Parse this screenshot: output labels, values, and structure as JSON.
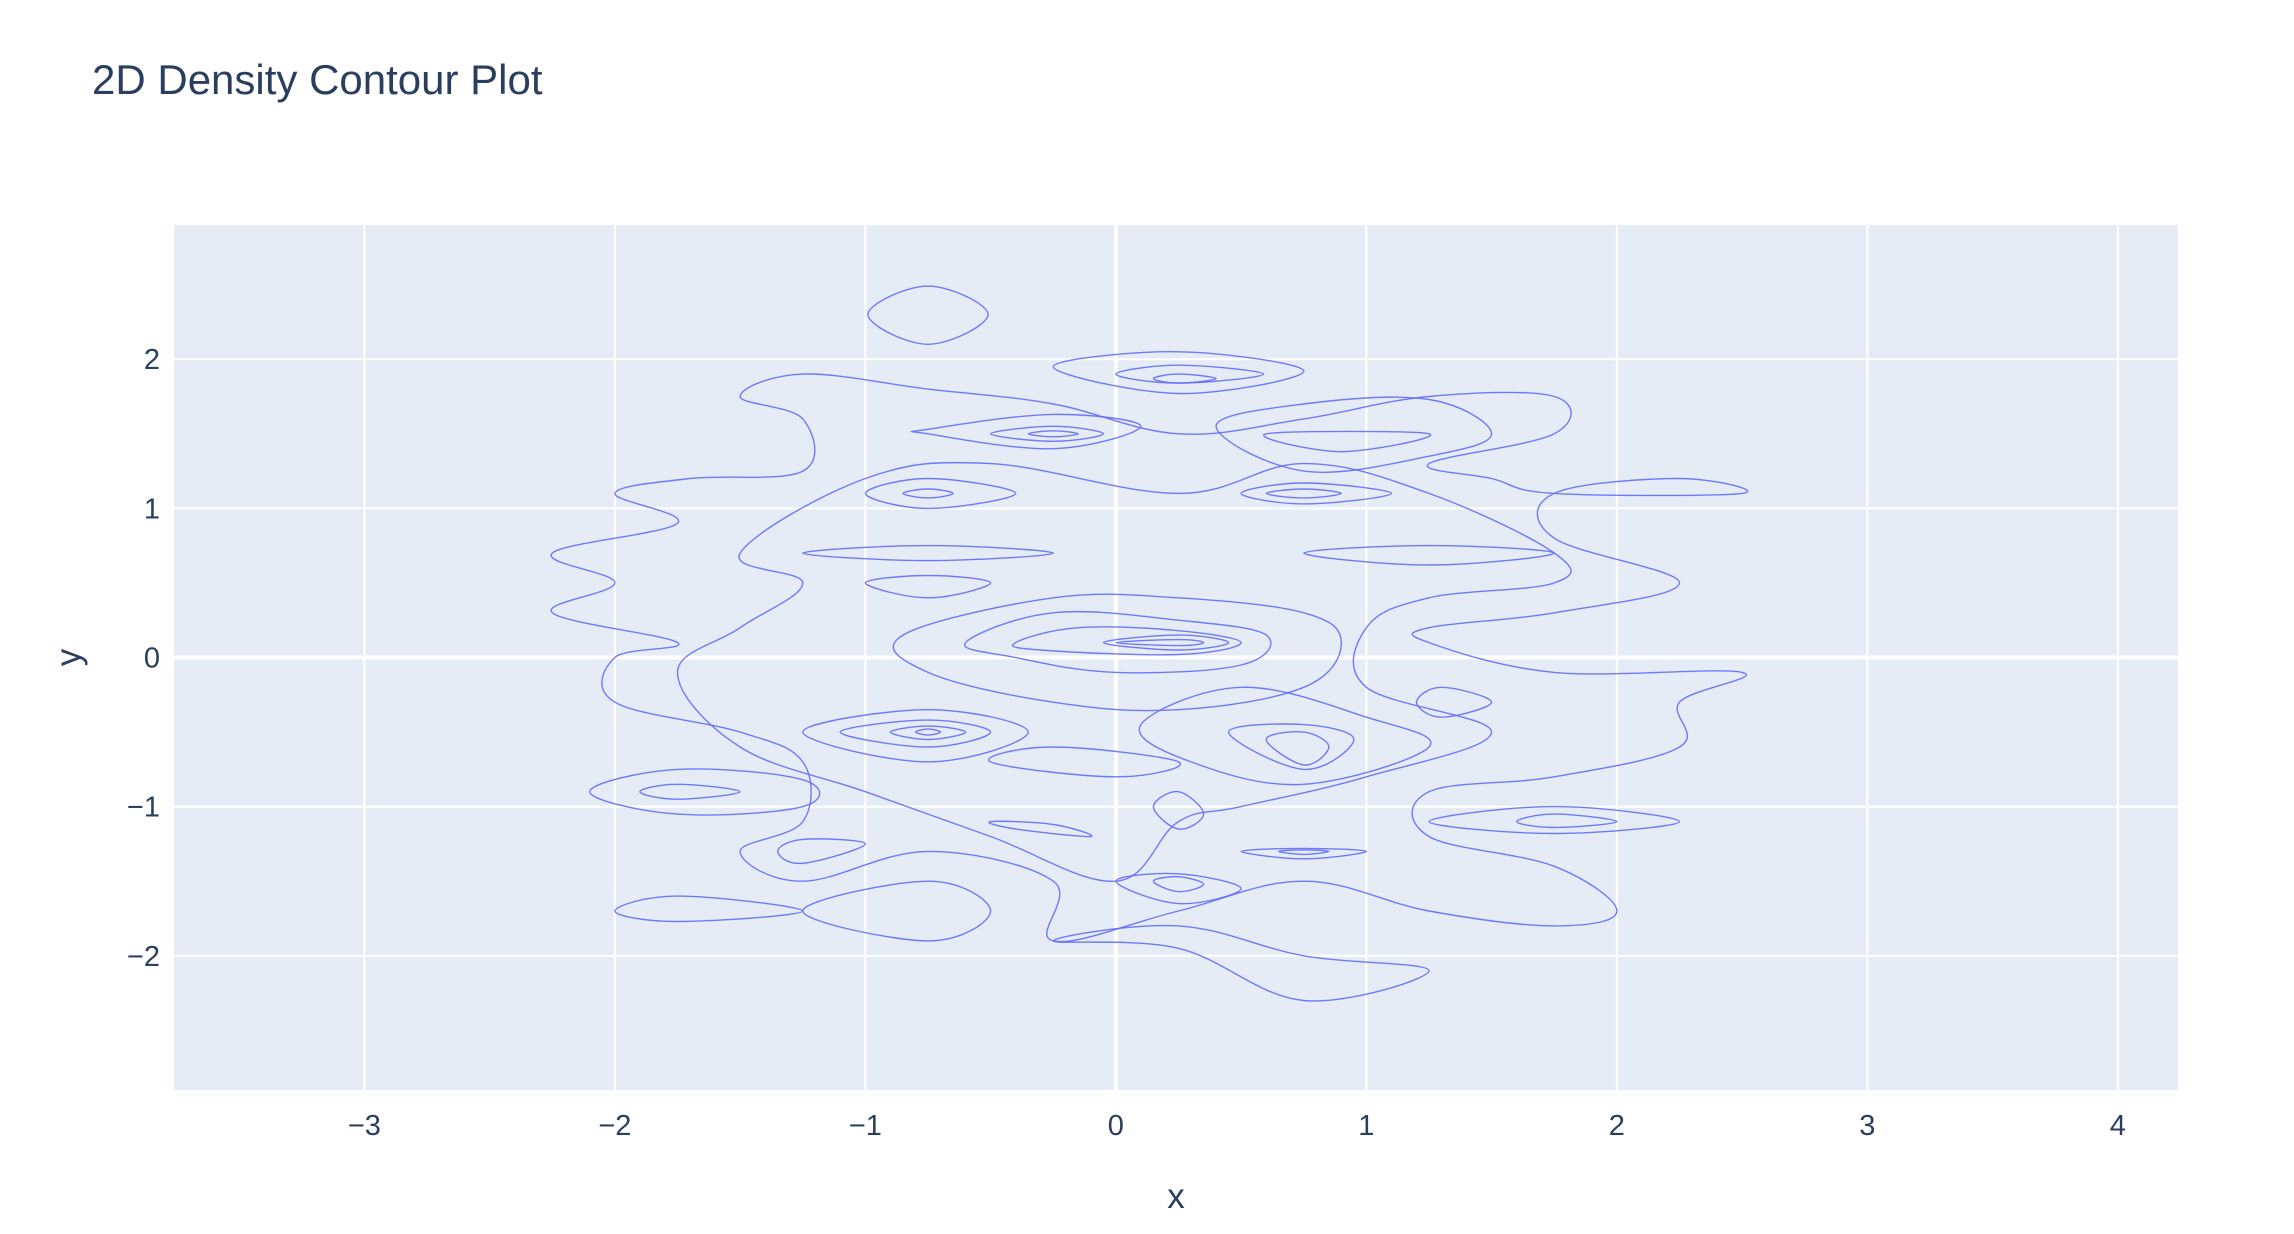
{
  "title": "2D Density Contour Plot",
  "chart_data": {
    "type": "contour",
    "title": "2D Density Contour Plot",
    "xlabel": "x",
    "ylabel": "y",
    "xlim": [
      -3.76,
      4.24
    ],
    "ylim": [
      -2.9,
      2.9
    ],
    "x_ticks": [
      -3,
      -2,
      -1,
      0,
      1,
      2,
      3,
      4
    ],
    "x_tick_labels": [
      "−3",
      "−2",
      "−1",
      "0",
      "1",
      "2",
      "3",
      "4"
    ],
    "y_ticks": [
      -2,
      -1,
      0,
      1,
      2
    ],
    "y_tick_labels": [
      "−2",
      "−1",
      "0",
      "1",
      "2"
    ],
    "grid": true,
    "legend": "none",
    "colors": {
      "plot_bg": "#e5ecf6",
      "grid": "#ffffff",
      "line": "#636efa",
      "text": "#2a3f5f"
    },
    "contours": [
      [
        [
          -0.99,
          2.3
        ],
        [
          -0.75,
          2.49
        ],
        [
          -0.51,
          2.3
        ],
        [
          -0.75,
          2.1
        ],
        [
          -0.99,
          2.3
        ]
      ],
      [
        [
          -0.25,
          1.95
        ],
        [
          0.25,
          2.05
        ],
        [
          0.75,
          1.92
        ],
        [
          0.25,
          1.77
        ],
        [
          -0.25,
          1.95
        ]
      ],
      [
        [
          0.0,
          1.9
        ],
        [
          0.25,
          1.96
        ],
        [
          0.59,
          1.9
        ],
        [
          0.25,
          1.84
        ],
        [
          0.0,
          1.9
        ]
      ],
      [
        [
          0.15,
          1.87
        ],
        [
          0.25,
          1.9
        ],
        [
          0.4,
          1.87
        ],
        [
          0.25,
          1.84
        ],
        [
          0.15,
          1.87
        ]
      ],
      [
        [
          -0.75,
          1.53
        ],
        [
          -0.25,
          1.63
        ],
        [
          0.1,
          1.55
        ],
        [
          -0.25,
          1.4
        ],
        [
          -0.75,
          1.5
        ]
      ],
      [
        [
          -0.5,
          1.5
        ],
        [
          -0.25,
          1.55
        ],
        [
          -0.05,
          1.5
        ],
        [
          -0.25,
          1.45
        ],
        [
          -0.5,
          1.5
        ]
      ],
      [
        [
          -0.35,
          1.5
        ],
        [
          -0.25,
          1.52
        ],
        [
          -0.15,
          1.5
        ],
        [
          -0.25,
          1.48
        ],
        [
          -0.35,
          1.5
        ]
      ],
      [
        [
          0.4,
          1.55
        ],
        [
          0.75,
          1.7
        ],
        [
          1.25,
          1.73
        ],
        [
          1.5,
          1.5
        ],
        [
          1.25,
          1.35
        ],
        [
          0.75,
          1.25
        ],
        [
          0.4,
          1.55
        ]
      ],
      [
        [
          0.6,
          1.5
        ],
        [
          1.25,
          1.5
        ],
        [
          0.9,
          1.38
        ],
        [
          0.6,
          1.5
        ]
      ],
      [
        [
          -2.0,
          1.1
        ],
        [
          -1.7,
          1.2
        ],
        [
          -1.25,
          1.25
        ],
        [
          -1.25,
          1.6
        ],
        [
          -1.5,
          1.75
        ],
        [
          -1.25,
          1.9
        ],
        [
          -0.75,
          1.8
        ],
        [
          -0.25,
          1.7
        ],
        [
          0.25,
          1.5
        ],
        [
          0.75,
          1.6
        ],
        [
          1.25,
          1.75
        ],
        [
          1.75,
          1.75
        ],
        [
          1.75,
          1.5
        ],
        [
          1.25,
          1.3
        ],
        [
          1.5,
          1.2
        ],
        [
          1.75,
          1.1
        ],
        [
          2.5,
          1.1
        ],
        [
          2.25,
          1.2
        ],
        [
          1.75,
          1.1
        ],
        [
          1.75,
          0.8
        ],
        [
          2.25,
          0.5
        ],
        [
          1.75,
          0.3
        ],
        [
          1.25,
          0.2
        ],
        [
          1.25,
          0.1
        ],
        [
          1.75,
          -0.1
        ],
        [
          2.5,
          -0.1
        ],
        [
          2.25,
          -0.3
        ],
        [
          2.25,
          -0.6
        ],
        [
          1.75,
          -0.8
        ],
        [
          1.25,
          -0.9
        ],
        [
          1.25,
          -1.2
        ],
        [
          1.75,
          -1.4
        ],
        [
          2.0,
          -1.7
        ],
        [
          1.75,
          -1.8
        ],
        [
          1.25,
          -1.7
        ],
        [
          0.75,
          -1.5
        ],
        [
          0.25,
          -1.7
        ],
        [
          -0.25,
          -1.9
        ],
        [
          -0.25,
          -1.5
        ],
        [
          -0.75,
          -1.3
        ],
        [
          -1.25,
          -1.5
        ],
        [
          -1.5,
          -1.3
        ],
        [
          -1.25,
          -1.1
        ],
        [
          -1.25,
          -0.7
        ],
        [
          -1.5,
          -0.5
        ],
        [
          -2.0,
          -0.3
        ],
        [
          -2.0,
          0.0
        ],
        [
          -1.75,
          0.1
        ],
        [
          -2.25,
          0.3
        ],
        [
          -2.0,
          0.5
        ],
        [
          -2.25,
          0.7
        ],
        [
          -1.75,
          0.9
        ],
        [
          -2.0,
          1.1
        ]
      ],
      [
        [
          -1.25,
          0.5
        ],
        [
          -1.5,
          0.7
        ],
        [
          -1.0,
          1.2
        ],
        [
          -0.5,
          1.3
        ],
        [
          0.25,
          1.1
        ],
        [
          0.75,
          1.3
        ],
        [
          1.25,
          1.1
        ],
        [
          1.75,
          0.7
        ],
        [
          1.75,
          0.5
        ],
        [
          1.25,
          0.4
        ],
        [
          1.0,
          0.2
        ],
        [
          1.0,
          -0.2
        ],
        [
          1.5,
          -0.5
        ],
        [
          1.0,
          -0.8
        ],
        [
          0.5,
          -1.0
        ],
        [
          0.25,
          -1.1
        ],
        [
          0.0,
          -1.5
        ],
        [
          -0.5,
          -1.2
        ],
        [
          -1.0,
          -0.9
        ],
        [
          -1.5,
          -0.6
        ],
        [
          -1.75,
          -0.1
        ],
        [
          -1.5,
          0.2
        ],
        [
          -1.25,
          0.5
        ]
      ],
      [
        [
          -1.25,
          0.7
        ],
        [
          -0.75,
          0.65
        ],
        [
          -0.25,
          0.7
        ],
        [
          -0.75,
          0.75
        ],
        [
          -1.25,
          0.7
        ]
      ],
      [
        [
          -1.0,
          0.5
        ],
        [
          -0.75,
          0.55
        ],
        [
          -0.5,
          0.5
        ],
        [
          -0.75,
          0.4
        ],
        [
          -1.0,
          0.5
        ]
      ],
      [
        [
          -1.0,
          1.1
        ],
        [
          -0.75,
          1.2
        ],
        [
          -0.4,
          1.1
        ],
        [
          -0.75,
          1.0
        ],
        [
          -1.0,
          1.1
        ]
      ],
      [
        [
          -0.85,
          1.1
        ],
        [
          -0.75,
          1.13
        ],
        [
          -0.65,
          1.1
        ],
        [
          -0.75,
          1.07
        ],
        [
          -0.85,
          1.1
        ]
      ],
      [
        [
          0.5,
          1.1
        ],
        [
          0.75,
          1.17
        ],
        [
          1.1,
          1.1
        ],
        [
          0.75,
          1.03
        ],
        [
          0.5,
          1.1
        ]
      ],
      [
        [
          0.6,
          1.1
        ],
        [
          0.75,
          1.13
        ],
        [
          0.9,
          1.1
        ],
        [
          0.75,
          1.07
        ],
        [
          0.6,
          1.1
        ]
      ],
      [
        [
          0.75,
          0.7
        ],
        [
          1.25,
          0.75
        ],
        [
          1.75,
          0.7
        ],
        [
          1.25,
          0.62
        ],
        [
          0.75,
          0.7
        ]
      ],
      [
        [
          -0.85,
          0.15
        ],
        [
          -0.25,
          0.4
        ],
        [
          0.25,
          0.4
        ],
        [
          0.75,
          0.3
        ],
        [
          0.9,
          0.1
        ],
        [
          0.75,
          -0.2
        ],
        [
          0.25,
          -0.35
        ],
        [
          -0.25,
          -0.3
        ],
        [
          -0.75,
          -0.1
        ],
        [
          -0.85,
          0.15
        ]
      ],
      [
        [
          -0.6,
          0.1
        ],
        [
          -0.25,
          0.3
        ],
        [
          0.25,
          0.25
        ],
        [
          0.6,
          0.15
        ],
        [
          0.5,
          -0.05
        ],
        [
          0.0,
          -0.1
        ],
        [
          -0.4,
          0.0
        ],
        [
          -0.6,
          0.1
        ]
      ],
      [
        [
          -0.4,
          0.1
        ],
        [
          -0.15,
          0.2
        ],
        [
          0.25,
          0.18
        ],
        [
          0.5,
          0.1
        ],
        [
          0.25,
          0.02
        ],
        [
          -0.3,
          0.05
        ],
        [
          -0.4,
          0.1
        ]
      ],
      [
        [
          -0.05,
          0.1
        ],
        [
          0.25,
          0.15
        ],
        [
          0.45,
          0.1
        ],
        [
          0.25,
          0.05
        ],
        [
          -0.05,
          0.1
        ]
      ],
      [
        [
          0.0,
          0.1
        ],
        [
          0.25,
          0.12
        ],
        [
          0.35,
          0.1
        ],
        [
          0.25,
          0.08
        ],
        [
          0.0,
          0.1
        ]
      ],
      [
        [
          -1.25,
          -0.5
        ],
        [
          -0.75,
          -0.35
        ],
        [
          -0.35,
          -0.5
        ],
        [
          -0.75,
          -0.7
        ],
        [
          -1.25,
          -0.5
        ]
      ],
      [
        [
          -1.1,
          -0.5
        ],
        [
          -0.75,
          -0.42
        ],
        [
          -0.5,
          -0.5
        ],
        [
          -0.75,
          -0.6
        ],
        [
          -1.1,
          -0.5
        ]
      ],
      [
        [
          -0.9,
          -0.5
        ],
        [
          -0.75,
          -0.46
        ],
        [
          -0.6,
          -0.5
        ],
        [
          -0.75,
          -0.55
        ],
        [
          -0.9,
          -0.5
        ]
      ],
      [
        [
          -0.8,
          -0.5
        ],
        [
          -0.75,
          -0.48
        ],
        [
          -0.7,
          -0.5
        ],
        [
          -0.75,
          -0.52
        ],
        [
          -0.8,
          -0.5
        ]
      ],
      [
        [
          0.1,
          -0.45
        ],
        [
          0.5,
          -0.2
        ],
        [
          1.0,
          -0.4
        ],
        [
          1.25,
          -0.6
        ],
        [
          0.75,
          -0.85
        ],
        [
          0.3,
          -0.7
        ],
        [
          0.1,
          -0.45
        ]
      ],
      [
        [
          0.45,
          -0.5
        ],
        [
          0.75,
          -0.45
        ],
        [
          0.95,
          -0.55
        ],
        [
          0.75,
          -0.75
        ],
        [
          0.45,
          -0.5
        ]
      ],
      [
        [
          0.6,
          -0.55
        ],
        [
          0.75,
          -0.5
        ],
        [
          0.85,
          -0.6
        ],
        [
          0.75,
          -0.72
        ],
        [
          0.6,
          -0.55
        ]
      ],
      [
        [
          0.15,
          -1.0
        ],
        [
          0.25,
          -0.9
        ],
        [
          0.35,
          -1.05
        ],
        [
          0.25,
          -1.15
        ],
        [
          0.15,
          -1.0
        ]
      ],
      [
        [
          -0.5,
          -0.7
        ],
        [
          -0.25,
          -0.6
        ],
        [
          0.25,
          -0.7
        ],
        [
          0.0,
          -0.8
        ],
        [
          -0.5,
          -0.7
        ]
      ],
      [
        [
          -0.5,
          -1.1
        ],
        [
          -0.25,
          -1.12
        ],
        [
          -0.1,
          -1.2
        ],
        [
          -0.4,
          -1.15
        ],
        [
          -0.5,
          -1.1
        ]
      ],
      [
        [
          0.5,
          -1.3
        ],
        [
          0.75,
          -1.28
        ],
        [
          1.0,
          -1.3
        ],
        [
          0.75,
          -1.35
        ],
        [
          0.5,
          -1.3
        ]
      ],
      [
        [
          0.65,
          -1.3
        ],
        [
          0.75,
          -1.29
        ],
        [
          0.85,
          -1.3
        ],
        [
          0.75,
          -1.32
        ],
        [
          0.65,
          -1.3
        ]
      ],
      [
        [
          0.0,
          -1.5
        ],
        [
          0.25,
          -1.45
        ],
        [
          0.5,
          -1.55
        ],
        [
          0.25,
          -1.65
        ],
        [
          0.0,
          -1.5
        ]
      ],
      [
        [
          0.15,
          -1.5
        ],
        [
          0.25,
          -1.47
        ],
        [
          0.35,
          -1.52
        ],
        [
          0.25,
          -1.57
        ],
        [
          0.15,
          -1.5
        ]
      ],
      [
        [
          -1.35,
          -1.3
        ],
        [
          -1.25,
          -1.22
        ],
        [
          -1.0,
          -1.25
        ],
        [
          -1.25,
          -1.38
        ],
        [
          -1.35,
          -1.3
        ]
      ],
      [
        [
          -2.1,
          -0.9
        ],
        [
          -1.75,
          -0.75
        ],
        [
          -1.25,
          -0.82
        ],
        [
          -1.25,
          -1.0
        ],
        [
          -1.75,
          -1.05
        ],
        [
          -2.1,
          -0.9
        ]
      ],
      [
        [
          -1.9,
          -0.9
        ],
        [
          -1.75,
          -0.85
        ],
        [
          -1.5,
          -0.9
        ],
        [
          -1.75,
          -0.95
        ],
        [
          -1.9,
          -0.9
        ]
      ],
      [
        [
          -2.0,
          -1.7
        ],
        [
          -1.75,
          -1.6
        ],
        [
          -1.25,
          -1.7
        ],
        [
          -1.75,
          -1.77
        ],
        [
          -2.0,
          -1.7
        ]
      ],
      [
        [
          -1.25,
          -1.7
        ],
        [
          -0.75,
          -1.5
        ],
        [
          -0.5,
          -1.7
        ],
        [
          -0.75,
          -1.9
        ],
        [
          -1.25,
          -1.7
        ]
      ],
      [
        [
          -0.25,
          -1.9
        ],
        [
          0.25,
          -1.95
        ],
        [
          0.75,
          -2.3
        ],
        [
          1.25,
          -2.1
        ],
        [
          0.75,
          -2.0
        ],
        [
          0.25,
          -1.8
        ],
        [
          -0.25,
          -1.9
        ]
      ],
      [
        [
          1.25,
          -1.1
        ],
        [
          1.75,
          -1.0
        ],
        [
          2.25,
          -1.1
        ],
        [
          1.75,
          -1.18
        ],
        [
          1.25,
          -1.1
        ]
      ],
      [
        [
          1.6,
          -1.1
        ],
        [
          1.75,
          -1.05
        ],
        [
          2.0,
          -1.1
        ],
        [
          1.75,
          -1.14
        ],
        [
          1.6,
          -1.1
        ]
      ],
      [
        [
          1.2,
          -0.3
        ],
        [
          1.3,
          -0.2
        ],
        [
          1.5,
          -0.3
        ],
        [
          1.3,
          -0.4
        ],
        [
          1.2,
          -0.3
        ]
      ]
    ]
  }
}
